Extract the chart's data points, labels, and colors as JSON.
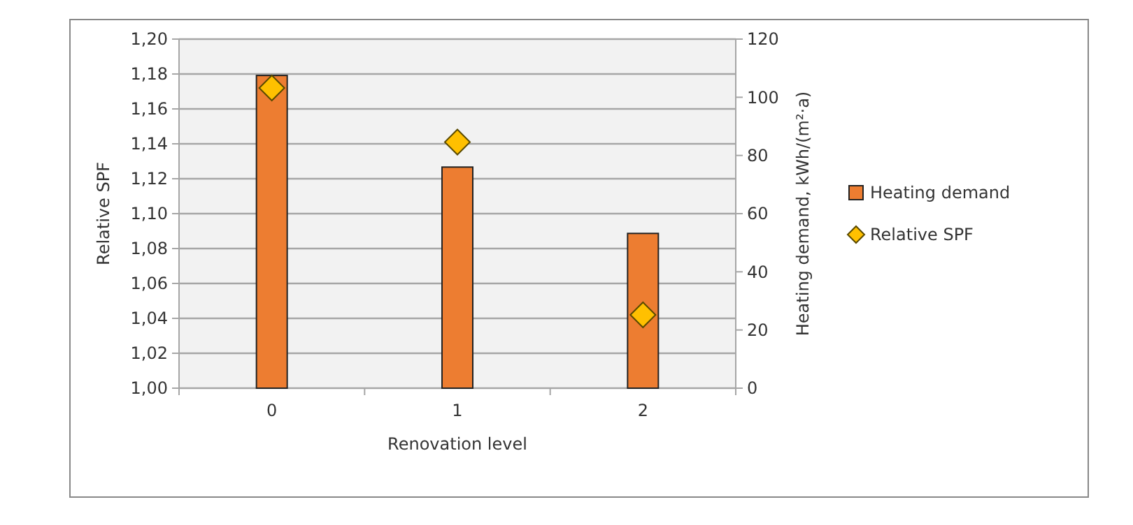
{
  "chart_data": {
    "type": "bar",
    "categories": [
      "0",
      "1",
      "2"
    ],
    "xlabel": "Renovation level",
    "ylabel": "Relative SPF",
    "y2label": "Heating demand, kWh/(m²·a)",
    "series": [
      {
        "name": "Heating demand",
        "axis": "y2",
        "color": "#ed7d31",
        "values": [
          107.5,
          76,
          53.2
        ]
      },
      {
        "name": "Relative SPF",
        "type": "scatter",
        "color": "#ffc000",
        "marker": "diamond",
        "values": [
          1.172,
          1.141,
          1.042
        ]
      }
    ],
    "ylim": [
      1.0,
      1.2
    ],
    "yticks": [
      {
        "value": 1.0,
        "label": "1,00"
      },
      {
        "value": 1.02,
        "label": "1,02"
      },
      {
        "value": 1.04,
        "label": "1,04"
      },
      {
        "value": 1.06,
        "label": "1,06"
      },
      {
        "value": 1.08,
        "label": "1,08"
      },
      {
        "value": 1.1,
        "label": "1,10"
      },
      {
        "value": 1.12,
        "label": "1,12"
      },
      {
        "value": 1.14,
        "label": "1,14"
      },
      {
        "value": 1.16,
        "label": "1,16"
      },
      {
        "value": 1.18,
        "label": "1,18"
      },
      {
        "value": 1.2,
        "label": "1,20"
      }
    ],
    "y2lim": [
      0,
      120
    ],
    "y2ticks": [
      0,
      20,
      40,
      60,
      80,
      100,
      120
    ],
    "grid": "y",
    "legend": "right"
  }
}
